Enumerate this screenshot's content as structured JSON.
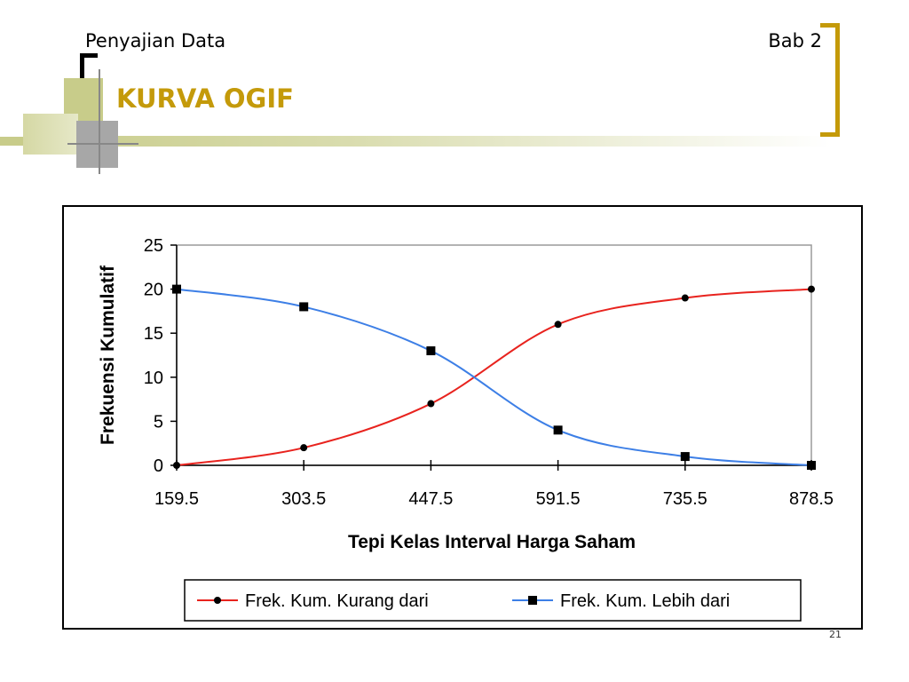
{
  "header": {
    "left": "Penyajian Data",
    "right": "Bab 2",
    "title": "KURVA OGIF"
  },
  "slide_number": "21",
  "colors": {
    "accent": "#c49a0a",
    "deco_green": "#c8cc8a",
    "deco_gray": "#a7a7a7",
    "series_red": "#e8231e",
    "series_blue": "#3d7fe6"
  },
  "chart_data": {
    "type": "line",
    "title": "",
    "xlabel": "Tepi Kelas Interval Harga Saham",
    "ylabel": "Frekuensi Kumulatif",
    "x": [
      159.5,
      303.5,
      447.5,
      591.5,
      735.5,
      878.5
    ],
    "x_tick_labels": [
      "159.5",
      "303.5",
      "447.5",
      "591.5",
      "735.5",
      "878.5"
    ],
    "ylim": [
      0,
      25
    ],
    "y_ticks": [
      0,
      5,
      10,
      15,
      20,
      25
    ],
    "grid": false,
    "legend_position": "bottom",
    "series": [
      {
        "name": "Frek. Kum. Kurang dari",
        "values": [
          0,
          2,
          7,
          16,
          19,
          20
        ],
        "marker": "circle",
        "color": "#e8231e"
      },
      {
        "name": "Frek. Kum. Lebih dari",
        "values": [
          20,
          18,
          13,
          4,
          1,
          0
        ],
        "marker": "square",
        "color": "#3d7fe6"
      }
    ]
  }
}
